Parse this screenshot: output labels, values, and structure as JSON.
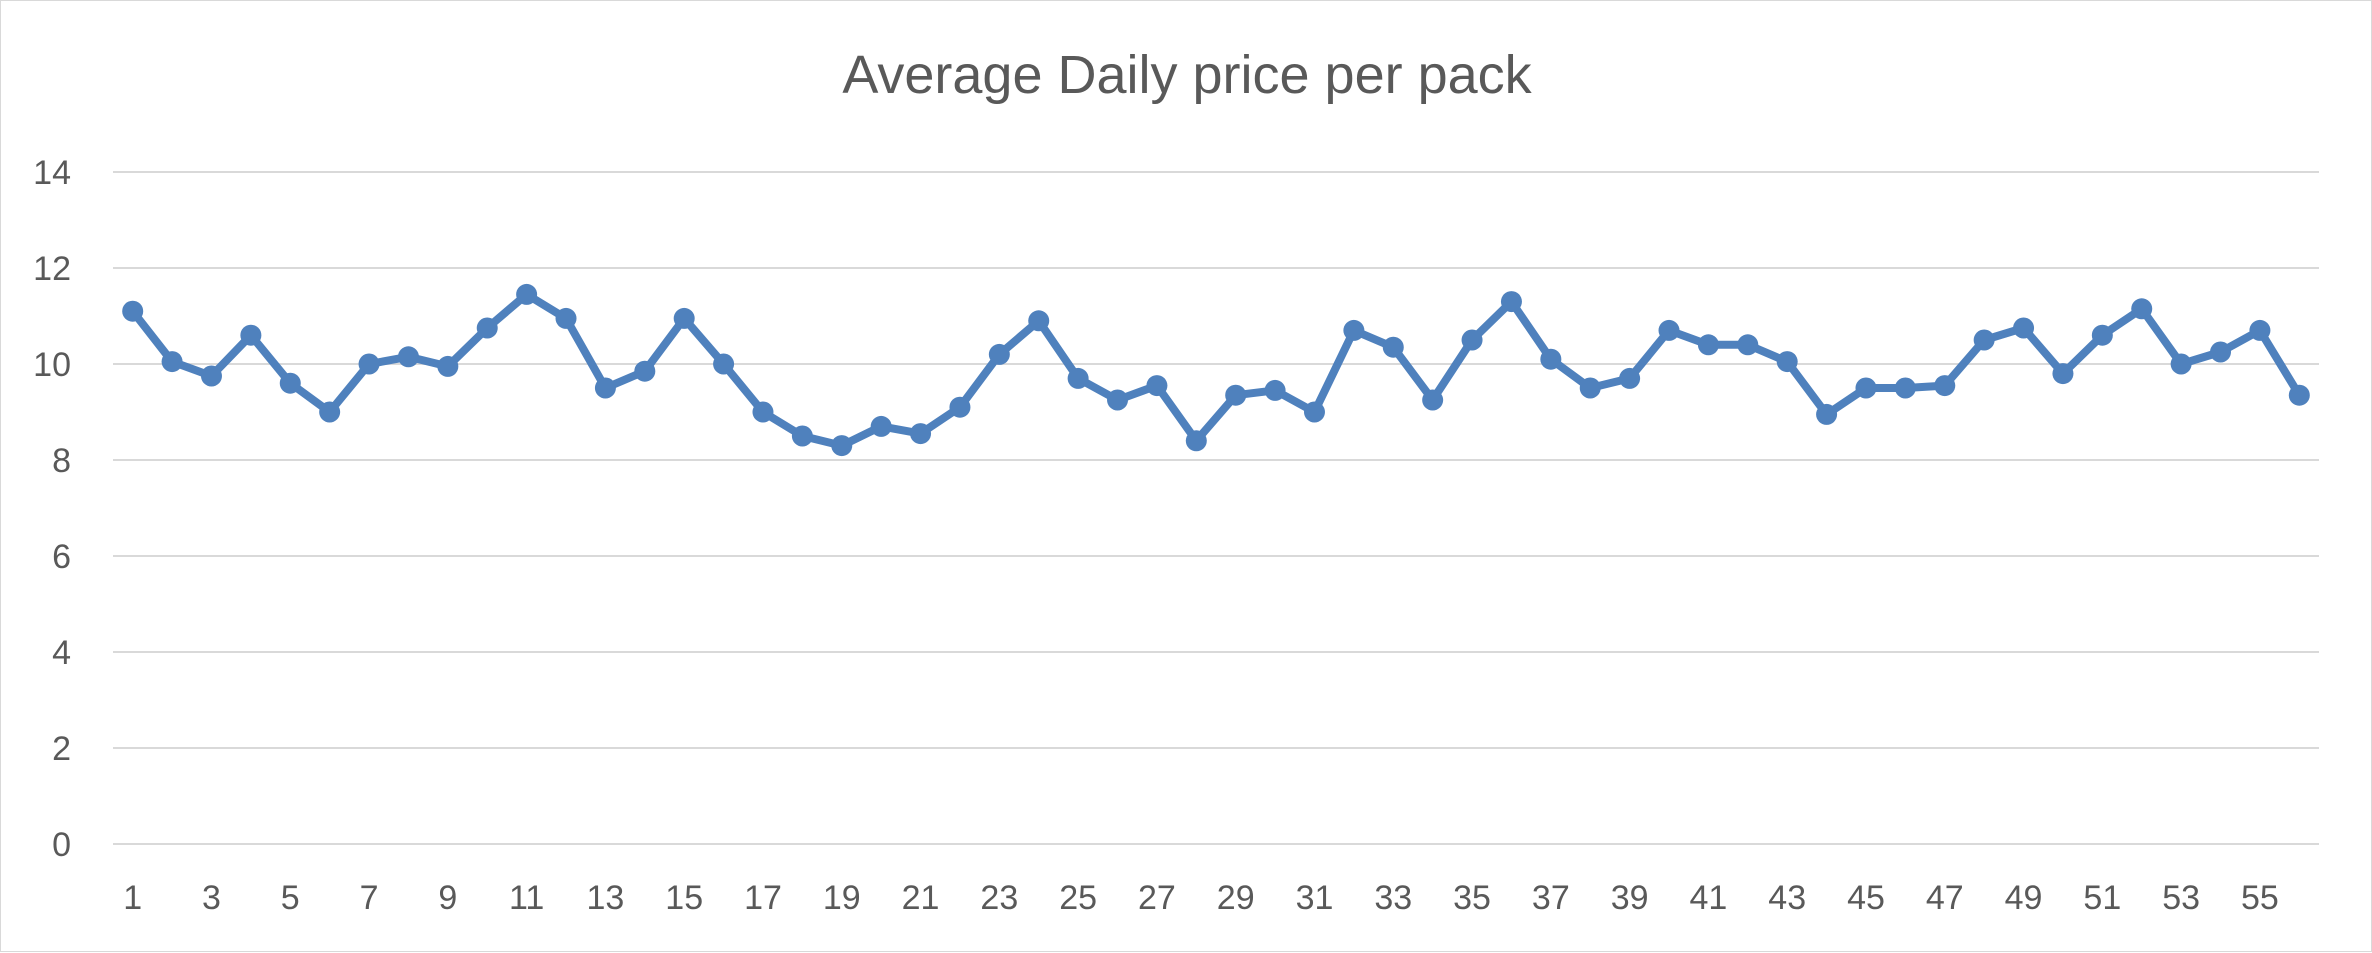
{
  "chart_data": {
    "type": "line",
    "title": "Average Daily price per pack",
    "xlabel": "",
    "ylabel": "",
    "ylim": [
      0,
      14
    ],
    "yticks": [
      0,
      2,
      4,
      6,
      8,
      10,
      12,
      14
    ],
    "x": [
      1,
      2,
      3,
      4,
      5,
      6,
      7,
      8,
      9,
      10,
      11,
      12,
      13,
      14,
      15,
      16,
      17,
      18,
      19,
      20,
      21,
      22,
      23,
      24,
      25,
      26,
      27,
      28,
      29,
      30,
      31,
      32,
      33,
      34,
      35,
      36,
      37,
      38,
      39,
      40,
      41,
      42,
      43,
      44,
      45,
      46,
      47,
      48,
      49,
      50,
      51,
      52,
      53,
      54,
      55,
      56
    ],
    "xtick_labels": [
      "1",
      "3",
      "5",
      "7",
      "9",
      "11",
      "13",
      "15",
      "17",
      "19",
      "21",
      "23",
      "25",
      "27",
      "29",
      "31",
      "33",
      "35",
      "37",
      "39",
      "41",
      "43",
      "45",
      "47",
      "49",
      "51",
      "53",
      "55"
    ],
    "grid": true,
    "legend": "none",
    "series": [
      {
        "name": "Average Daily price per pack",
        "color": "#4f81bd",
        "values": [
          11.1,
          10.05,
          9.75,
          10.6,
          9.6,
          9.0,
          10.0,
          10.15,
          9.95,
          10.75,
          11.45,
          10.95,
          9.5,
          9.85,
          10.95,
          10.0,
          9.0,
          8.5,
          8.3,
          8.7,
          8.55,
          9.1,
          10.2,
          10.9,
          9.7,
          9.25,
          9.55,
          8.4,
          9.35,
          9.45,
          9.0,
          10.7,
          10.35,
          9.25,
          10.5,
          11.3,
          10.1,
          9.5,
          9.7,
          10.7,
          10.4,
          10.4,
          10.05,
          8.95,
          9.5,
          9.5,
          9.55,
          10.5,
          10.75,
          9.8,
          10.6,
          11.15,
          10.0,
          10.25,
          10.7,
          9.35
        ]
      }
    ]
  }
}
